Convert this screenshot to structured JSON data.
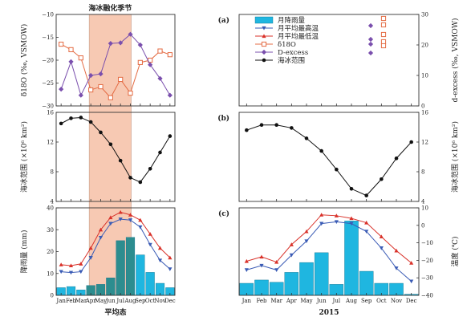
{
  "shading": {
    "label": "海冰融化季节",
    "months": [
      "Apr",
      "Aug"
    ],
    "color": "#f5b89a"
  },
  "legend": [
    {
      "label": "月降雨量",
      "kind": "bar",
      "color": "#1fb6e0"
    },
    {
      "label": "月平均最高温",
      "kind": "down-triangle-line",
      "color": "#3a5bb5"
    },
    {
      "label": "月平均最低温",
      "kind": "up-triangle-line",
      "color": "#d9322a"
    },
    {
      "label": "δ18O",
      "kind": "square-line",
      "color": "#e46b43"
    },
    {
      "label": "D-excess",
      "kind": "diamond-line",
      "color": "#7a4fad"
    },
    {
      "label": "海冰范围",
      "kind": "circle-line",
      "color": "#111111"
    }
  ],
  "colors": {
    "rain": "#1fb6e0",
    "rain_dark": "#2c8d8f",
    "tmax": "#3a5bb5",
    "tmin": "#d9322a",
    "d18o": "#e46b43",
    "dex": "#7a4fad",
    "ice": "#111111"
  },
  "chart_data": [
    {
      "panel": "(a)",
      "type": "line",
      "x": [
        "Jan",
        "Feb",
        "Mar",
        "Apr",
        "May",
        "Jun",
        "Jul",
        "Aug",
        "Sep",
        "Oct",
        "Nov",
        "Dec"
      ],
      "ylabel_left": "δ18O (‰, VSMOW)",
      "ylim_left": [
        -30,
        -10
      ],
      "yticks_left": [
        -30,
        -25,
        -20,
        -15,
        -10
      ],
      "ylabel_right": "d-excess (‰, VSMOW)",
      "ylim_right": [
        0,
        30
      ],
      "yticks_right": [
        0,
        10,
        20,
        30
      ],
      "series": [
        {
          "name": "δ18O",
          "axis": "left",
          "values": [
            -16.5,
            -17.7,
            -19.5,
            -26.5,
            -25.8,
            -28.2,
            -24.2,
            -27.2,
            -20.5,
            -20.0,
            -18.0,
            -18.8
          ]
        },
        {
          "name": "D-excess",
          "axis": "right",
          "values": [
            5.5,
            14.5,
            3.5,
            10.0,
            10.5,
            20.5,
            20.7,
            23.5,
            20.0,
            13.5,
            9.0,
            3.5
          ]
        }
      ]
    },
    {
      "panel": "(b)",
      "type": "line",
      "x": [
        "Jan",
        "Feb",
        "Mar",
        "Apr",
        "May",
        "Jun",
        "Jul",
        "Aug",
        "Sep",
        "Oct",
        "Nov",
        "Dec"
      ],
      "ylabel": "海冰范围 (×10⁶ km²)",
      "ylim": [
        4,
        16
      ],
      "yticks": [
        4,
        8,
        12,
        16
      ],
      "series": [
        {
          "name": "海冰范围",
          "subplot": "平均态",
          "values": [
            14.5,
            15.2,
            15.3,
            14.7,
            13.3,
            11.7,
            9.5,
            7.2,
            6.6,
            8.4,
            10.6,
            12.8
          ]
        },
        {
          "name": "海冰范围",
          "subplot": "2015",
          "values": [
            13.6,
            14.3,
            14.3,
            13.9,
            12.5,
            10.8,
            8.3,
            5.7,
            4.8,
            7.0,
            9.8,
            12.0
          ]
        }
      ]
    },
    {
      "panel": "(c)",
      "type": "bar",
      "x": [
        "Jan",
        "Feb",
        "Mar",
        "Apr",
        "May",
        "Jun",
        "Jul",
        "Aug",
        "Sep",
        "Oct",
        "Nov",
        "Dec"
      ],
      "ylabel_left": "降雨量 (mm)",
      "ylim_left": [
        0,
        40
      ],
      "yticks_left": [
        0,
        10,
        20,
        30,
        40
      ],
      "ylabel_right": "温度 (℃)",
      "ylim_right": [
        -40,
        10
      ],
      "yticks_right": [
        -40,
        -30,
        -20,
        -10,
        0,
        10
      ],
      "series": [
        {
          "name": "月降雨量",
          "subplot": "平均态",
          "values": [
            3.5,
            4.0,
            2.5,
            4.5,
            5.0,
            8.0,
            25.0,
            26.5,
            18.5,
            10.5,
            5.5,
            3.5
          ]
        },
        {
          "name": "月平均最高温",
          "subplot": "平均态",
          "values": [
            -26.5,
            -27.0,
            -26.5,
            -18.5,
            -7.0,
            1.0,
            3.5,
            3.0,
            -1.0,
            -11.0,
            -20.0,
            -25.0
          ]
        },
        {
          "name": "月平均最低温",
          "subplot": "平均态",
          "values": [
            -22.5,
            -23.0,
            -22.0,
            -13.0,
            -2.5,
            4.5,
            7.5,
            6.0,
            3.0,
            -5.0,
            -13.0,
            -18.5
          ]
        },
        {
          "name": "月降雨量",
          "subplot": "2015",
          "values": [
            5.5,
            7.0,
            6.0,
            10.5,
            15.0,
            19.5,
            5.0,
            34.0,
            11.0,
            5.5,
            5.5,
            0.5
          ]
        },
        {
          "name": "月平均最高温",
          "subplot": "2015",
          "values": [
            -25.5,
            -23.0,
            -25.5,
            -17.0,
            -9.0,
            1.0,
            2.0,
            1.0,
            -3.5,
            -13.0,
            -24.5,
            -32.0
          ]
        },
        {
          "name": "月平均最低温",
          "subplot": "2015",
          "values": [
            -20.5,
            -18.0,
            -21.0,
            -11.0,
            -3.5,
            6.0,
            5.5,
            4.0,
            1.5,
            -6.5,
            -14.5,
            -21.5
          ]
        }
      ]
    }
  ],
  "xlabels": {
    "left": "平均态",
    "right": "2015"
  }
}
